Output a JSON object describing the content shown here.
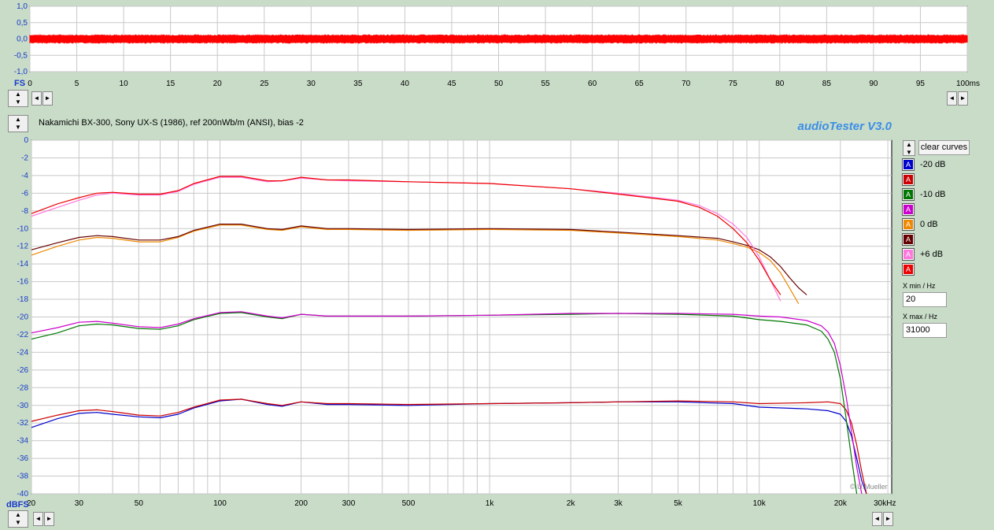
{
  "top_chart": {
    "chart_data": {
      "type": "line",
      "y_tick_labels": [
        "1,0",
        "0,5",
        "0,0",
        "-0,5",
        "-1,0"
      ],
      "y_ticks": [
        1.0,
        0.5,
        0.0,
        -0.5,
        -1.0
      ],
      "ylim": [
        -1.0,
        1.0
      ],
      "xlim": [
        0,
        100
      ],
      "x_ticks": [
        0,
        5,
        10,
        15,
        20,
        25,
        30,
        35,
        40,
        45,
        50,
        55,
        60,
        65,
        70,
        75,
        80,
        85,
        90,
        95,
        100
      ],
      "x_tick_labels": [
        "0",
        "5",
        "10",
        "15",
        "20",
        "25",
        "30",
        "35",
        "40",
        "45",
        "50",
        "55",
        "60",
        "65",
        "70",
        "75",
        "80",
        "85",
        "90",
        "95",
        "100ms"
      ],
      "ylabel": "FS",
      "signal_amplitude": 0.14,
      "signal_color": "#ff0000",
      "grid": true
    }
  },
  "header": {
    "title": "Nakamichi BX-300, Sony UX-S (1986), ref 200nWb/m (ANSI), bias -2",
    "brand": "audioTester  V3.0"
  },
  "controls": {
    "up": "▲",
    "down": "▼",
    "left": "◄",
    "right": "►"
  },
  "legend": {
    "clear_button": "clear curves",
    "items": [
      {
        "label": "-20 dB",
        "swatch_text": "A",
        "color": "#0000cc"
      },
      {
        "label": "",
        "swatch_text": "A",
        "color": "#cc0000"
      },
      {
        "label": "-10 dB",
        "swatch_text": "A",
        "color": "#007700"
      },
      {
        "label": "",
        "swatch_text": "A",
        "color": "#cc00cc"
      },
      {
        "label": "0 dB",
        "swatch_text": "A",
        "color": "#ee8800"
      },
      {
        "label": "",
        "swatch_text": "A",
        "color": "#660000"
      },
      {
        "label": "+6 dB",
        "swatch_text": "A",
        "color": "#ff77dd"
      },
      {
        "label": "",
        "swatch_text": "A",
        "color": "#ee0000"
      }
    ],
    "xmin_label": "X min / Hz",
    "xmin_value": "20",
    "xmax_label": "X max / Hz",
    "xmax_value": "31000"
  },
  "main_chart": {
    "chart_data": {
      "type": "line",
      "x_scale": "log",
      "xlim": [
        20,
        31000
      ],
      "ylim": [
        -40,
        0
      ],
      "ylabel": "dBFS",
      "y_ticks": [
        0,
        -2,
        -4,
        -6,
        -8,
        -10,
        -12,
        -14,
        -16,
        -18,
        -20,
        -22,
        -24,
        -26,
        -28,
        -30,
        -32,
        -34,
        -36,
        -38,
        -40
      ],
      "y_tick_labels": [
        "0",
        "-2",
        "-4",
        "-6",
        "-8",
        "-10",
        "-12",
        "-14",
        "-16",
        "-18",
        "-20",
        "-22",
        "-24",
        "-26",
        "-28",
        "-30",
        "-32",
        "-34",
        "-36",
        "-38",
        "-40"
      ],
      "x_ticks": [
        20,
        30,
        50,
        100,
        200,
        300,
        500,
        1000,
        2000,
        3000,
        5000,
        10000,
        20000,
        30000
      ],
      "x_tick_labels": [
        "20",
        "30",
        "50",
        "100",
        "200",
        "300",
        "500",
        "1k",
        "2k",
        "3k",
        "5k",
        "10k",
        "20k",
        "30kHz"
      ],
      "watermark": "© U.Mueller",
      "grid": true,
      "series": [
        {
          "color": "#0000cc",
          "x": [
            20,
            25,
            30,
            35,
            40,
            50,
            60,
            70,
            80,
            100,
            120,
            150,
            170,
            200,
            250,
            300,
            500,
            1000,
            2000,
            3000,
            5000,
            8000,
            10000,
            15000,
            18000,
            20000,
            21000,
            22000,
            23000,
            24000,
            25000
          ],
          "y": [
            -32.5,
            -31.5,
            -30.9,
            -30.8,
            -31.0,
            -31.3,
            -31.4,
            -31.0,
            -30.3,
            -29.5,
            -29.3,
            -29.9,
            -30.1,
            -29.6,
            -29.9,
            -29.9,
            -30.0,
            -29.8,
            -29.7,
            -29.6,
            -29.6,
            -29.8,
            -30.2,
            -30.4,
            -30.6,
            -31.0,
            -31.8,
            -33.5,
            -36.0,
            -38.5,
            -40.0
          ]
        },
        {
          "color": "#cc0000",
          "x": [
            20,
            25,
            30,
            35,
            40,
            50,
            60,
            70,
            80,
            100,
            120,
            150,
            170,
            200,
            250,
            300,
            500,
            1000,
            2000,
            3000,
            5000,
            8000,
            10000,
            15000,
            18000,
            20000,
            21000,
            22000,
            23000,
            24000,
            25000
          ],
          "y": [
            -31.8,
            -31.1,
            -30.6,
            -30.5,
            -30.7,
            -31.1,
            -31.2,
            -30.8,
            -30.2,
            -29.4,
            -29.3,
            -29.8,
            -30.0,
            -29.6,
            -29.8,
            -29.8,
            -29.9,
            -29.8,
            -29.7,
            -29.6,
            -29.5,
            -29.6,
            -29.8,
            -29.7,
            -29.6,
            -29.8,
            -30.5,
            -32.0,
            -34.5,
            -37.5,
            -40.0
          ]
        },
        {
          "color": "#007700",
          "x": [
            20,
            25,
            30,
            35,
            40,
            50,
            60,
            70,
            80,
            100,
            120,
            150,
            170,
            200,
            250,
            300,
            500,
            1000,
            2000,
            3000,
            5000,
            8000,
            10000,
            12000,
            15000,
            17000,
            18000,
            19000,
            20000,
            21000,
            22000,
            23000
          ],
          "y": [
            -22.5,
            -21.8,
            -21.0,
            -20.8,
            -20.9,
            -21.3,
            -21.4,
            -21.0,
            -20.3,
            -19.6,
            -19.5,
            -20.0,
            -20.2,
            -19.7,
            -19.9,
            -19.9,
            -19.9,
            -19.8,
            -19.7,
            -19.6,
            -19.7,
            -19.9,
            -20.3,
            -20.5,
            -20.9,
            -21.6,
            -22.5,
            -24.0,
            -27.0,
            -31.5,
            -36.0,
            -40.0
          ]
        },
        {
          "color": "#cc00cc",
          "x": [
            20,
            25,
            30,
            35,
            40,
            50,
            60,
            70,
            80,
            100,
            120,
            150,
            170,
            200,
            250,
            300,
            500,
            1000,
            2000,
            3000,
            5000,
            8000,
            10000,
            12000,
            15000,
            17000,
            18000,
            19000,
            20000,
            21000,
            22000,
            23000,
            24000
          ],
          "y": [
            -21.8,
            -21.2,
            -20.6,
            -20.5,
            -20.7,
            -21.1,
            -21.2,
            -20.8,
            -20.2,
            -19.5,
            -19.4,
            -19.9,
            -20.1,
            -19.7,
            -19.9,
            -19.9,
            -19.9,
            -19.8,
            -19.6,
            -19.6,
            -19.6,
            -19.7,
            -19.9,
            -20.0,
            -20.4,
            -21.0,
            -21.7,
            -23.0,
            -25.5,
            -29.0,
            -33.0,
            -37.0,
            -40.0
          ]
        },
        {
          "color": "#ee8800",
          "x": [
            20,
            25,
            30,
            35,
            40,
            50,
            60,
            70,
            80,
            100,
            120,
            150,
            170,
            200,
            250,
            300,
            500,
            1000,
            2000,
            3000,
            5000,
            7000,
            8000,
            9000,
            10000,
            11000,
            12000,
            13000,
            14000
          ],
          "y": [
            -13.0,
            -12.0,
            -11.3,
            -11.0,
            -11.1,
            -11.5,
            -11.5,
            -11.0,
            -10.3,
            -9.6,
            -9.6,
            -10.1,
            -10.2,
            -9.8,
            -10.1,
            -10.1,
            -10.2,
            -10.1,
            -10.2,
            -10.5,
            -10.9,
            -11.3,
            -11.7,
            -12.1,
            -12.7,
            -13.6,
            -15.0,
            -16.8,
            -18.5
          ]
        },
        {
          "color": "#660000",
          "x": [
            20,
            25,
            30,
            35,
            40,
            50,
            60,
            70,
            80,
            100,
            120,
            150,
            170,
            200,
            250,
            300,
            500,
            1000,
            2000,
            3000,
            5000,
            7000,
            8000,
            9000,
            10000,
            11000,
            12000,
            13000,
            14000,
            15000
          ],
          "y": [
            -12.4,
            -11.6,
            -11.0,
            -10.8,
            -10.9,
            -11.3,
            -11.3,
            -10.9,
            -10.2,
            -9.5,
            -9.5,
            -10.0,
            -10.1,
            -9.7,
            -10.0,
            -10.0,
            -10.1,
            -10.0,
            -10.1,
            -10.4,
            -10.8,
            -11.1,
            -11.5,
            -11.9,
            -12.4,
            -13.2,
            -14.3,
            -15.6,
            -16.7,
            -17.5
          ]
        },
        {
          "color": "#ff77dd",
          "x": [
            20,
            25,
            30,
            35,
            40,
            50,
            60,
            70,
            80,
            100,
            120,
            150,
            170,
            200,
            250,
            300,
            500,
            1000,
            2000,
            3000,
            5000,
            6000,
            7000,
            8000,
            9000,
            10000,
            11000,
            12000
          ],
          "y": [
            -8.6,
            -7.6,
            -6.8,
            -6.2,
            -6.0,
            -6.2,
            -6.2,
            -5.8,
            -5.0,
            -4.2,
            -4.2,
            -4.7,
            -4.6,
            -4.3,
            -4.5,
            -4.6,
            -4.7,
            -4.9,
            -5.5,
            -6.0,
            -6.8,
            -7.4,
            -8.3,
            -9.5,
            -11.0,
            -13.2,
            -15.8,
            -18.2
          ]
        },
        {
          "color": "#ee0000",
          "x": [
            20,
            25,
            30,
            35,
            40,
            50,
            60,
            70,
            80,
            100,
            120,
            150,
            170,
            200,
            250,
            300,
            500,
            1000,
            2000,
            3000,
            5000,
            6000,
            7000,
            8000,
            9000,
            10000,
            11000,
            12000
          ],
          "y": [
            -8.3,
            -7.2,
            -6.5,
            -6.0,
            -5.9,
            -6.1,
            -6.1,
            -5.7,
            -4.9,
            -4.1,
            -4.1,
            -4.6,
            -4.6,
            -4.2,
            -4.5,
            -4.5,
            -4.7,
            -4.9,
            -5.5,
            -6.1,
            -6.9,
            -7.6,
            -8.6,
            -10.0,
            -11.6,
            -13.6,
            -15.8,
            -17.5
          ]
        }
      ]
    }
  }
}
